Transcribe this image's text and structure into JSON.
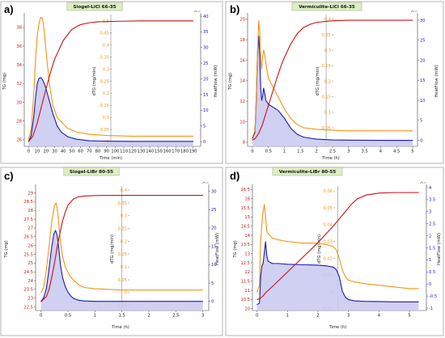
{
  "colors": {
    "tg": "#cc1111",
    "dtg": "#f29411",
    "heatflow": "#1a1ab8",
    "fill": "#c8c8f0",
    "title_bg": "#ddeec3",
    "grid_marker": "#888888"
  },
  "icons": [
    "zoom-icon"
  ],
  "chart_data": [
    {
      "letter": "a)",
      "type": "line",
      "title": "Siogel-LiCl 66-35",
      "xlabel": "Time (min)",
      "ylabel_left": "TG (mg)",
      "ylabel_mid": "dTG (mg/min)",
      "ylabel_right": "HeatFlow (mW)",
      "xlim": [
        -5,
        195
      ],
      "x_ticks": [
        "0",
        "10",
        "20",
        "30",
        "40",
        "50",
        "60",
        "70",
        "80",
        "90",
        "100",
        "110",
        "120",
        "130",
        "140",
        "150",
        "160",
        "170",
        "180",
        "190"
      ],
      "x_tick_values": [
        0,
        10,
        20,
        30,
        40,
        50,
        60,
        70,
        80,
        90,
        100,
        110,
        120,
        130,
        140,
        150,
        160,
        170,
        180,
        190
      ],
      "tg_lim": [
        25.3,
        39.2
      ],
      "tg_ticks": [
        "26",
        "28",
        "30",
        "32",
        "34",
        "36",
        "38"
      ],
      "tg_tick_values": [
        26,
        28,
        30,
        32,
        34,
        36,
        38
      ],
      "dtg_lim": [
        -0.02,
        0.52
      ],
      "dtg_ticks": [
        "0",
        "0.05",
        "0.1",
        "0.15",
        "0.2",
        "0.25",
        "0.3",
        "0.35",
        "0.4",
        "0.45",
        "0.5"
      ],
      "dtg_tick_values": [
        0,
        0.05,
        0.1,
        0.15,
        0.2,
        0.25,
        0.3,
        0.35,
        0.4,
        0.45,
        0.5
      ],
      "hf_lim": [
        -1.5,
        40
      ],
      "hf_ticks": [
        "0",
        "5",
        "10",
        "15",
        "20",
        "25",
        "30",
        "35",
        "40"
      ],
      "hf_tick_values": [
        0,
        5,
        10,
        15,
        20,
        25,
        30,
        35,
        40
      ],
      "marker_x": 95,
      "series": [
        {
          "key": "tg",
          "x": [
            0,
            5,
            10,
            15,
            20,
            25,
            30,
            40,
            50,
            60,
            70,
            80,
            100,
            130,
            160,
            190
          ],
          "y": [
            25.8,
            26.4,
            27.8,
            29.6,
            31.4,
            33.1,
            34.6,
            36.6,
            37.8,
            38.3,
            38.5,
            38.6,
            38.65,
            38.7,
            38.7,
            38.7
          ]
        },
        {
          "key": "dtg",
          "x": [
            0,
            3,
            6,
            8,
            10,
            12,
            14,
            16,
            18,
            20,
            24,
            28,
            33,
            38,
            45,
            55,
            70,
            90,
            120,
            190
          ],
          "y": [
            0.01,
            0.05,
            0.2,
            0.34,
            0.44,
            0.49,
            0.515,
            0.51,
            0.46,
            0.38,
            0.24,
            0.15,
            0.1,
            0.08,
            0.055,
            0.04,
            0.03,
            0.025,
            0.022,
            0.022
          ]
        },
        {
          "key": "heatflow",
          "x": [
            0,
            3,
            6,
            8,
            10,
            12,
            14,
            16,
            18,
            20,
            24,
            28,
            33,
            38,
            45,
            55,
            70,
            90,
            120,
            190
          ],
          "y": [
            0,
            2,
            8,
            14,
            18.5,
            20.2,
            20.4,
            19.8,
            18.6,
            17,
            13,
            9,
            5,
            3,
            1.6,
            0.8,
            0.3,
            0.15,
            0.1,
            0.1
          ]
        }
      ]
    },
    {
      "letter": "b)",
      "type": "line",
      "title": "Vermiculite-LiCl 66-35",
      "xlabel": "Time (h)",
      "ylabel_left": "TG (mg)",
      "ylabel_mid": "dTG (mg/min)",
      "ylabel_right": "HeatFlow (mW)",
      "xlim": [
        -0.15,
        5.05
      ],
      "x_ticks": [
        "0",
        "0.5",
        "1",
        "1.5",
        "2",
        "2.5",
        "3",
        "3.5",
        "4",
        "4.5",
        "5"
      ],
      "x_tick_values": [
        0,
        0.5,
        1,
        1.5,
        2,
        2.5,
        3,
        3.5,
        4,
        4.5,
        5
      ],
      "tg_lim": [
        7.6,
        20.3
      ],
      "tg_ticks": [
        "8",
        "10",
        "12",
        "14",
        "16",
        "18",
        "20"
      ],
      "tg_tick_values": [
        8,
        10,
        12,
        14,
        16,
        18,
        20
      ],
      "dtg_lim": [
        -0.01,
        0.41
      ],
      "dtg_ticks": [
        "0",
        "0.05",
        "0.1",
        "0.15",
        "0.2",
        "0.25",
        "0.3",
        "0.35",
        "0.4"
      ],
      "dtg_tick_values": [
        0,
        0.05,
        0.1,
        0.15,
        0.2,
        0.25,
        0.3,
        0.35,
        0.4
      ],
      "hf_lim": [
        -1.5,
        31
      ],
      "hf_ticks": [
        "0",
        "5",
        "10",
        "15",
        "20",
        "25",
        "30"
      ],
      "hf_tick_values": [
        0,
        5,
        10,
        15,
        20,
        25,
        30
      ],
      "marker_x": 2.3,
      "series": [
        {
          "key": "tg",
          "x": [
            0,
            0.1,
            0.2,
            0.3,
            0.4,
            0.5,
            0.6,
            0.7,
            0.8,
            0.9,
            1,
            1.2,
            1.4,
            1.6,
            1.8,
            2,
            2.5,
            3,
            4,
            5
          ],
          "y": [
            8.2,
            8.4,
            8.9,
            9.6,
            10.6,
            11.6,
            12.6,
            13.6,
            14.6,
            15.5,
            16.3,
            17.6,
            18.6,
            19.2,
            19.5,
            19.7,
            19.85,
            19.9,
            19.9,
            19.9
          ]
        },
        {
          "key": "dtg",
          "x": [
            0,
            0.08,
            0.12,
            0.16,
            0.2,
            0.23,
            0.26,
            0.29,
            0.32,
            0.35,
            0.38,
            0.42,
            0.46,
            0.5,
            0.6,
            0.7,
            0.8,
            0.9,
            1,
            1.2,
            1.4,
            1.6,
            2,
            2.5,
            3,
            4,
            5
          ],
          "y": [
            0.02,
            0.04,
            0.15,
            0.3,
            0.395,
            0.36,
            0.27,
            0.24,
            0.28,
            0.3,
            0.29,
            0.26,
            0.23,
            0.21,
            0.19,
            0.17,
            0.15,
            0.13,
            0.11,
            0.08,
            0.06,
            0.05,
            0.045,
            0.042,
            0.04,
            0.04,
            0.04
          ]
        },
        {
          "key": "heatflow",
          "x": [
            0,
            0.08,
            0.12,
            0.16,
            0.2,
            0.23,
            0.26,
            0.29,
            0.32,
            0.35,
            0.38,
            0.42,
            0.5,
            0.6,
            0.7,
            0.8,
            0.9,
            1,
            1.2,
            1.4,
            1.6,
            2,
            2.5,
            3,
            4,
            5
          ],
          "y": [
            0.5,
            2,
            10,
            22,
            26,
            21,
            13,
            10,
            11,
            13,
            12,
            10,
            9,
            8.5,
            8,
            7.5,
            6.5,
            5.5,
            3,
            1.5,
            0.8,
            0.3,
            0.1,
            0.05,
            0,
            0
          ]
        }
      ]
    },
    {
      "letter": "c)",
      "type": "line",
      "title": "Siogel-LiBr 80-55",
      "xlabel": "Time (h)",
      "ylabel_left": "TG (mg)",
      "ylabel_mid": "dTG (mg/min)",
      "ylabel_right": "HeatFlow (mW)",
      "xlim": [
        -0.1,
        3.05
      ],
      "x_ticks": [
        "0",
        "0.5",
        "1",
        "1.5",
        "2",
        "2.5",
        "3"
      ],
      "x_tick_values": [
        0,
        0.5,
        1,
        1.5,
        2,
        2.5,
        3
      ],
      "tg_lim": [
        22.3,
        29.3
      ],
      "tg_ticks": [
        "22.5",
        "23",
        "23.5",
        "24",
        "24.5",
        "25",
        "25.5",
        "26",
        "26.5",
        "27",
        "27.5",
        "28",
        "28.5",
        "29"
      ],
      "tg_tick_values": [
        22.5,
        23,
        23.5,
        24,
        24.5,
        25,
        25.5,
        26,
        26.5,
        27,
        27.5,
        28,
        28.5,
        29
      ],
      "dtg_lim": [
        -0.07,
        0.41
      ],
      "dtg_ticks": [
        "-0.05",
        "0",
        "0.05",
        "0.1",
        "0.15",
        "0.2",
        "0.25",
        "0.3",
        "0.35",
        "0.4"
      ],
      "dtg_tick_values": [
        -0.05,
        0,
        0.05,
        0.1,
        0.15,
        0.2,
        0.25,
        0.3,
        0.35,
        0.4
      ],
      "hf_lim": [
        -2.5,
        31
      ],
      "hf_ticks": [
        "0",
        "5",
        "10",
        "15",
        "20",
        "25",
        "30"
      ],
      "hf_tick_values": [
        0,
        5,
        10,
        15,
        20,
        25,
        30
      ],
      "marker_x": 1.5,
      "series": [
        {
          "key": "tg",
          "x": [
            0,
            0.1,
            0.15,
            0.2,
            0.25,
            0.3,
            0.35,
            0.4,
            0.45,
            0.5,
            0.6,
            0.7,
            0.8,
            1,
            1.5,
            2,
            3
          ],
          "y": [
            22.8,
            23.1,
            23.5,
            24.2,
            25,
            25.9,
            26.7,
            27.4,
            27.9,
            28.3,
            28.65,
            28.78,
            28.82,
            28.85,
            28.86,
            28.86,
            28.86
          ]
        },
        {
          "key": "dtg",
          "x": [
            0,
            0.05,
            0.1,
            0.15,
            0.2,
            0.25,
            0.28,
            0.3,
            0.33,
            0.36,
            0.4,
            0.45,
            0.5,
            0.55,
            0.6,
            0.7,
            0.8,
            1,
            1.5,
            2,
            3
          ],
          "y": [
            0.0,
            0.02,
            0.09,
            0.18,
            0.28,
            0.34,
            0.35,
            0.33,
            0.27,
            0.2,
            0.14,
            0.1,
            0.08,
            0.06,
            0.05,
            0.03,
            0.02,
            0.015,
            0.01,
            0.01,
            0.01
          ]
        },
        {
          "key": "heatflow",
          "x": [
            0,
            0.05,
            0.1,
            0.15,
            0.2,
            0.24,
            0.27,
            0.3,
            0.33,
            0.36,
            0.4,
            0.45,
            0.5,
            0.55,
            0.6,
            0.7,
            0.8,
            1,
            1.5,
            2,
            3
          ],
          "y": [
            0,
            1,
            3.5,
            9,
            15,
            18.5,
            19.3,
            18,
            14.5,
            10,
            6.5,
            4,
            2.5,
            1.5,
            0.8,
            0.3,
            0.1,
            0,
            0,
            0,
            0
          ]
        }
      ]
    },
    {
      "letter": "d)",
      "type": "line",
      "title": "Vermiculite-LiBr 80-55",
      "xlabel": "Time (h)",
      "ylabel_left": "TG (mg)",
      "ylabel_mid": "dTG (mg/min)",
      "ylabel_right": "HeatFlow (mW)",
      "xlim": [
        -0.15,
        5.45
      ],
      "x_ticks": [
        "0",
        "1",
        "2",
        "3",
        "4",
        "5"
      ],
      "x_tick_values": [
        0,
        1,
        2,
        3,
        4,
        5
      ],
      "tg_lim": [
        9.9,
        16.6
      ],
      "tg_ticks": [
        "10",
        "10.5",
        "11",
        "11.5",
        "12",
        "12.5",
        "13",
        "13.5",
        "14",
        "14.5",
        "15",
        "15.5",
        "16",
        "16.5"
      ],
      "tg_tick_values": [
        10,
        10.5,
        11,
        11.5,
        12,
        12.5,
        13,
        13.5,
        14,
        14.5,
        15,
        15.5,
        16,
        16.5
      ],
      "dtg_lim": [
        -0.011,
        0.062
      ],
      "dtg_ticks": [
        "-0.01",
        "0",
        "0.01",
        "0.02",
        "0.03",
        "0.04",
        "0.05",
        "0.06"
      ],
      "dtg_tick_values": [
        -0.01,
        0,
        0.01,
        0.02,
        0.03,
        0.04,
        0.05,
        0.06
      ],
      "hf_lim": [
        -1.1,
        4
      ],
      "hf_ticks": [
        "-1",
        "-0.5",
        "0",
        "0.5",
        "1",
        "1.5",
        "2",
        "2.5",
        "3",
        "3.5",
        "4"
      ],
      "hf_tick_values": [
        -1,
        -0.5,
        0,
        0.5,
        1,
        1.5,
        2,
        2.5,
        3,
        3.5,
        4
      ],
      "marker_x": 2.65,
      "series": [
        {
          "key": "tg",
          "x": [
            0,
            0.1,
            0.2,
            0.3,
            0.5,
            1,
            1.5,
            2,
            2.5,
            2.7,
            2.9,
            3.1,
            3.3,
            3.6,
            4,
            4.5,
            5,
            5.3
          ],
          "y": [
            10.5,
            10.55,
            10.7,
            10.9,
            11.2,
            12,
            12.8,
            13.6,
            14.5,
            14.9,
            15.3,
            15.7,
            16,
            16.2,
            16.3,
            16.33,
            16.33,
            16.33
          ]
        },
        {
          "key": "dtg",
          "x": [
            0,
            0.08,
            0.12,
            0.18,
            0.24,
            0.28,
            0.32,
            0.36,
            0.4,
            0.5,
            0.7,
            1,
            1.5,
            2,
            2.3,
            2.5,
            2.6,
            2.7,
            2.8,
            2.9,
            3,
            3.2,
            3.5,
            4,
            4.5,
            5,
            5.3
          ],
          "y": [
            0,
            0.004,
            0.03,
            0.045,
            0.052,
            0.045,
            0.036,
            0.035,
            0.034,
            0.032,
            0.031,
            0.03,
            0.029,
            0.029,
            0.028,
            0.027,
            0.025,
            0.02,
            0.013,
            0.009,
            0.007,
            0.006,
            0.005,
            0.004,
            0.003,
            0.002,
            0.002
          ]
        },
        {
          "key": "heatflow",
          "x": [
            0,
            0.08,
            0.12,
            0.16,
            0.2,
            0.24,
            0.28,
            0.32,
            0.36,
            0.4,
            0.5,
            0.7,
            1,
            1.5,
            2,
            2.3,
            2.5,
            2.6,
            2.7,
            2.8,
            2.9,
            3,
            3.2,
            3.5,
            4,
            4.5,
            5,
            5.3
          ],
          "y": [
            -0.85,
            -0.8,
            0.3,
            0.75,
            0.85,
            1.3,
            1.75,
            1.2,
            0.95,
            0.92,
            0.85,
            0.85,
            0.82,
            0.8,
            0.78,
            0.75,
            0.7,
            0.6,
            0.3,
            -0.3,
            -0.55,
            -0.65,
            -0.7,
            -0.72,
            -0.73,
            -0.74,
            -0.74,
            -0.74
          ]
        }
      ]
    }
  ]
}
